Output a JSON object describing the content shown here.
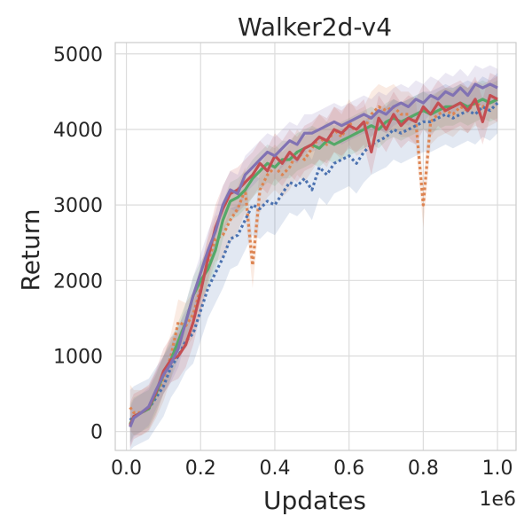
{
  "chart_data": {
    "type": "line",
    "title": "Walker2d-v4",
    "xlabel": "Updates",
    "ylabel": "Return",
    "x_offset_label": "1e6",
    "xlim": [
      -0.03,
      1.05
    ],
    "ylim": [
      -250,
      5150
    ],
    "x_ticks": [
      0.0,
      0.2,
      0.4,
      0.6,
      0.8,
      1.0
    ],
    "x_tick_labels": [
      "0.0",
      "0.2",
      "0.4",
      "0.6",
      "0.8",
      "1.0"
    ],
    "y_ticks": [
      0,
      1000,
      2000,
      3000,
      4000,
      5000
    ],
    "y_tick_labels": [
      "0",
      "1000",
      "2000",
      "3000",
      "4000",
      "5000"
    ],
    "grid": true,
    "legend": "none",
    "x": [
      0.01,
      0.02,
      0.04,
      0.06,
      0.08,
      0.1,
      0.12,
      0.14,
      0.16,
      0.18,
      0.2,
      0.22,
      0.24,
      0.26,
      0.28,
      0.3,
      0.32,
      0.34,
      0.36,
      0.38,
      0.4,
      0.42,
      0.44,
      0.46,
      0.48,
      0.5,
      0.52,
      0.54,
      0.56,
      0.58,
      0.6,
      0.62,
      0.64,
      0.66,
      0.68,
      0.7,
      0.72,
      0.74,
      0.76,
      0.78,
      0.8,
      0.82,
      0.84,
      0.86,
      0.88,
      0.9,
      0.92,
      0.94,
      0.96,
      0.98,
      1.0
    ],
    "series": [
      {
        "color": "#dd8452",
        "style": "dotted",
        "values": [
          320,
          250,
          250,
          300,
          480,
          700,
          1000,
          1450,
          1400,
          1550,
          1900,
          2250,
          2550,
          2600,
          2800,
          2950,
          3200,
          2200,
          3200,
          3400,
          3500,
          3400,
          3500,
          3700,
          3600,
          3750,
          3900,
          3800,
          4000,
          3900,
          4100,
          3950,
          4000,
          4200,
          4300,
          4250,
          4300,
          4200,
          4200,
          4100,
          3000,
          4100,
          4200,
          4250,
          4200,
          4300,
          4250,
          4350,
          4300,
          4350,
          4400
        ],
        "band": 300
      },
      {
        "color": "#4c72b0",
        "style": "dotted",
        "values": [
          150,
          200,
          250,
          300,
          450,
          600,
          850,
          1000,
          1200,
          1300,
          1600,
          1900,
          2100,
          2300,
          2550,
          2600,
          2800,
          3000,
          2950,
          3050,
          3000,
          3150,
          3300,
          3250,
          3350,
          3200,
          3500,
          3400,
          3550,
          3600,
          3650,
          3550,
          3700,
          3800,
          3850,
          3900,
          4000,
          3950,
          4000,
          4050,
          4100,
          4100,
          4150,
          4200,
          4150,
          4200,
          4250,
          4200,
          4300,
          4250,
          4350
        ],
        "band": 400
      },
      {
        "color": "#55a868",
        "style": "solid",
        "values": [
          100,
          200,
          250,
          300,
          500,
          750,
          950,
          1200,
          1450,
          1800,
          2000,
          2150,
          2400,
          2800,
          3050,
          3100,
          3200,
          3350,
          3450,
          3550,
          3500,
          3600,
          3600,
          3700,
          3750,
          3800,
          3750,
          3850,
          3800,
          3850,
          3900,
          3950,
          4000,
          4050,
          4000,
          4100,
          4150,
          4100,
          4150,
          4200,
          4250,
          4200,
          4250,
          4300,
          4300,
          4350,
          4300,
          4350,
          4400,
          4350,
          4400
        ],
        "band": 250
      },
      {
        "color": "#c44e52",
        "style": "solid",
        "values": [
          80,
          200,
          250,
          320,
          520,
          800,
          950,
          1000,
          1150,
          1450,
          1850,
          2300,
          2700,
          2950,
          3150,
          3200,
          3300,
          3400,
          3550,
          3450,
          3650,
          3550,
          3700,
          3600,
          3750,
          3800,
          3900,
          3850,
          4000,
          3950,
          4050,
          4000,
          4100,
          3700,
          4150,
          4000,
          4200,
          4050,
          4150,
          4100,
          4300,
          4200,
          4350,
          4250,
          4300,
          4350,
          4250,
          4400,
          4100,
          4450,
          4400
        ],
        "band": 300
      },
      {
        "color": "#8172b3",
        "style": "solid",
        "values": [
          60,
          180,
          250,
          330,
          550,
          750,
          900,
          1100,
          1450,
          1800,
          2100,
          2400,
          2650,
          3000,
          3200,
          3150,
          3400,
          3500,
          3600,
          3700,
          3650,
          3750,
          3850,
          3800,
          3950,
          3950,
          4000,
          4050,
          4100,
          4050,
          4100,
          4150,
          4200,
          4150,
          4250,
          4200,
          4300,
          4350,
          4300,
          4400,
          4350,
          4450,
          4400,
          4500,
          4450,
          4550,
          4450,
          4600,
          4550,
          4600,
          4550
        ],
        "band": 250
      }
    ]
  }
}
